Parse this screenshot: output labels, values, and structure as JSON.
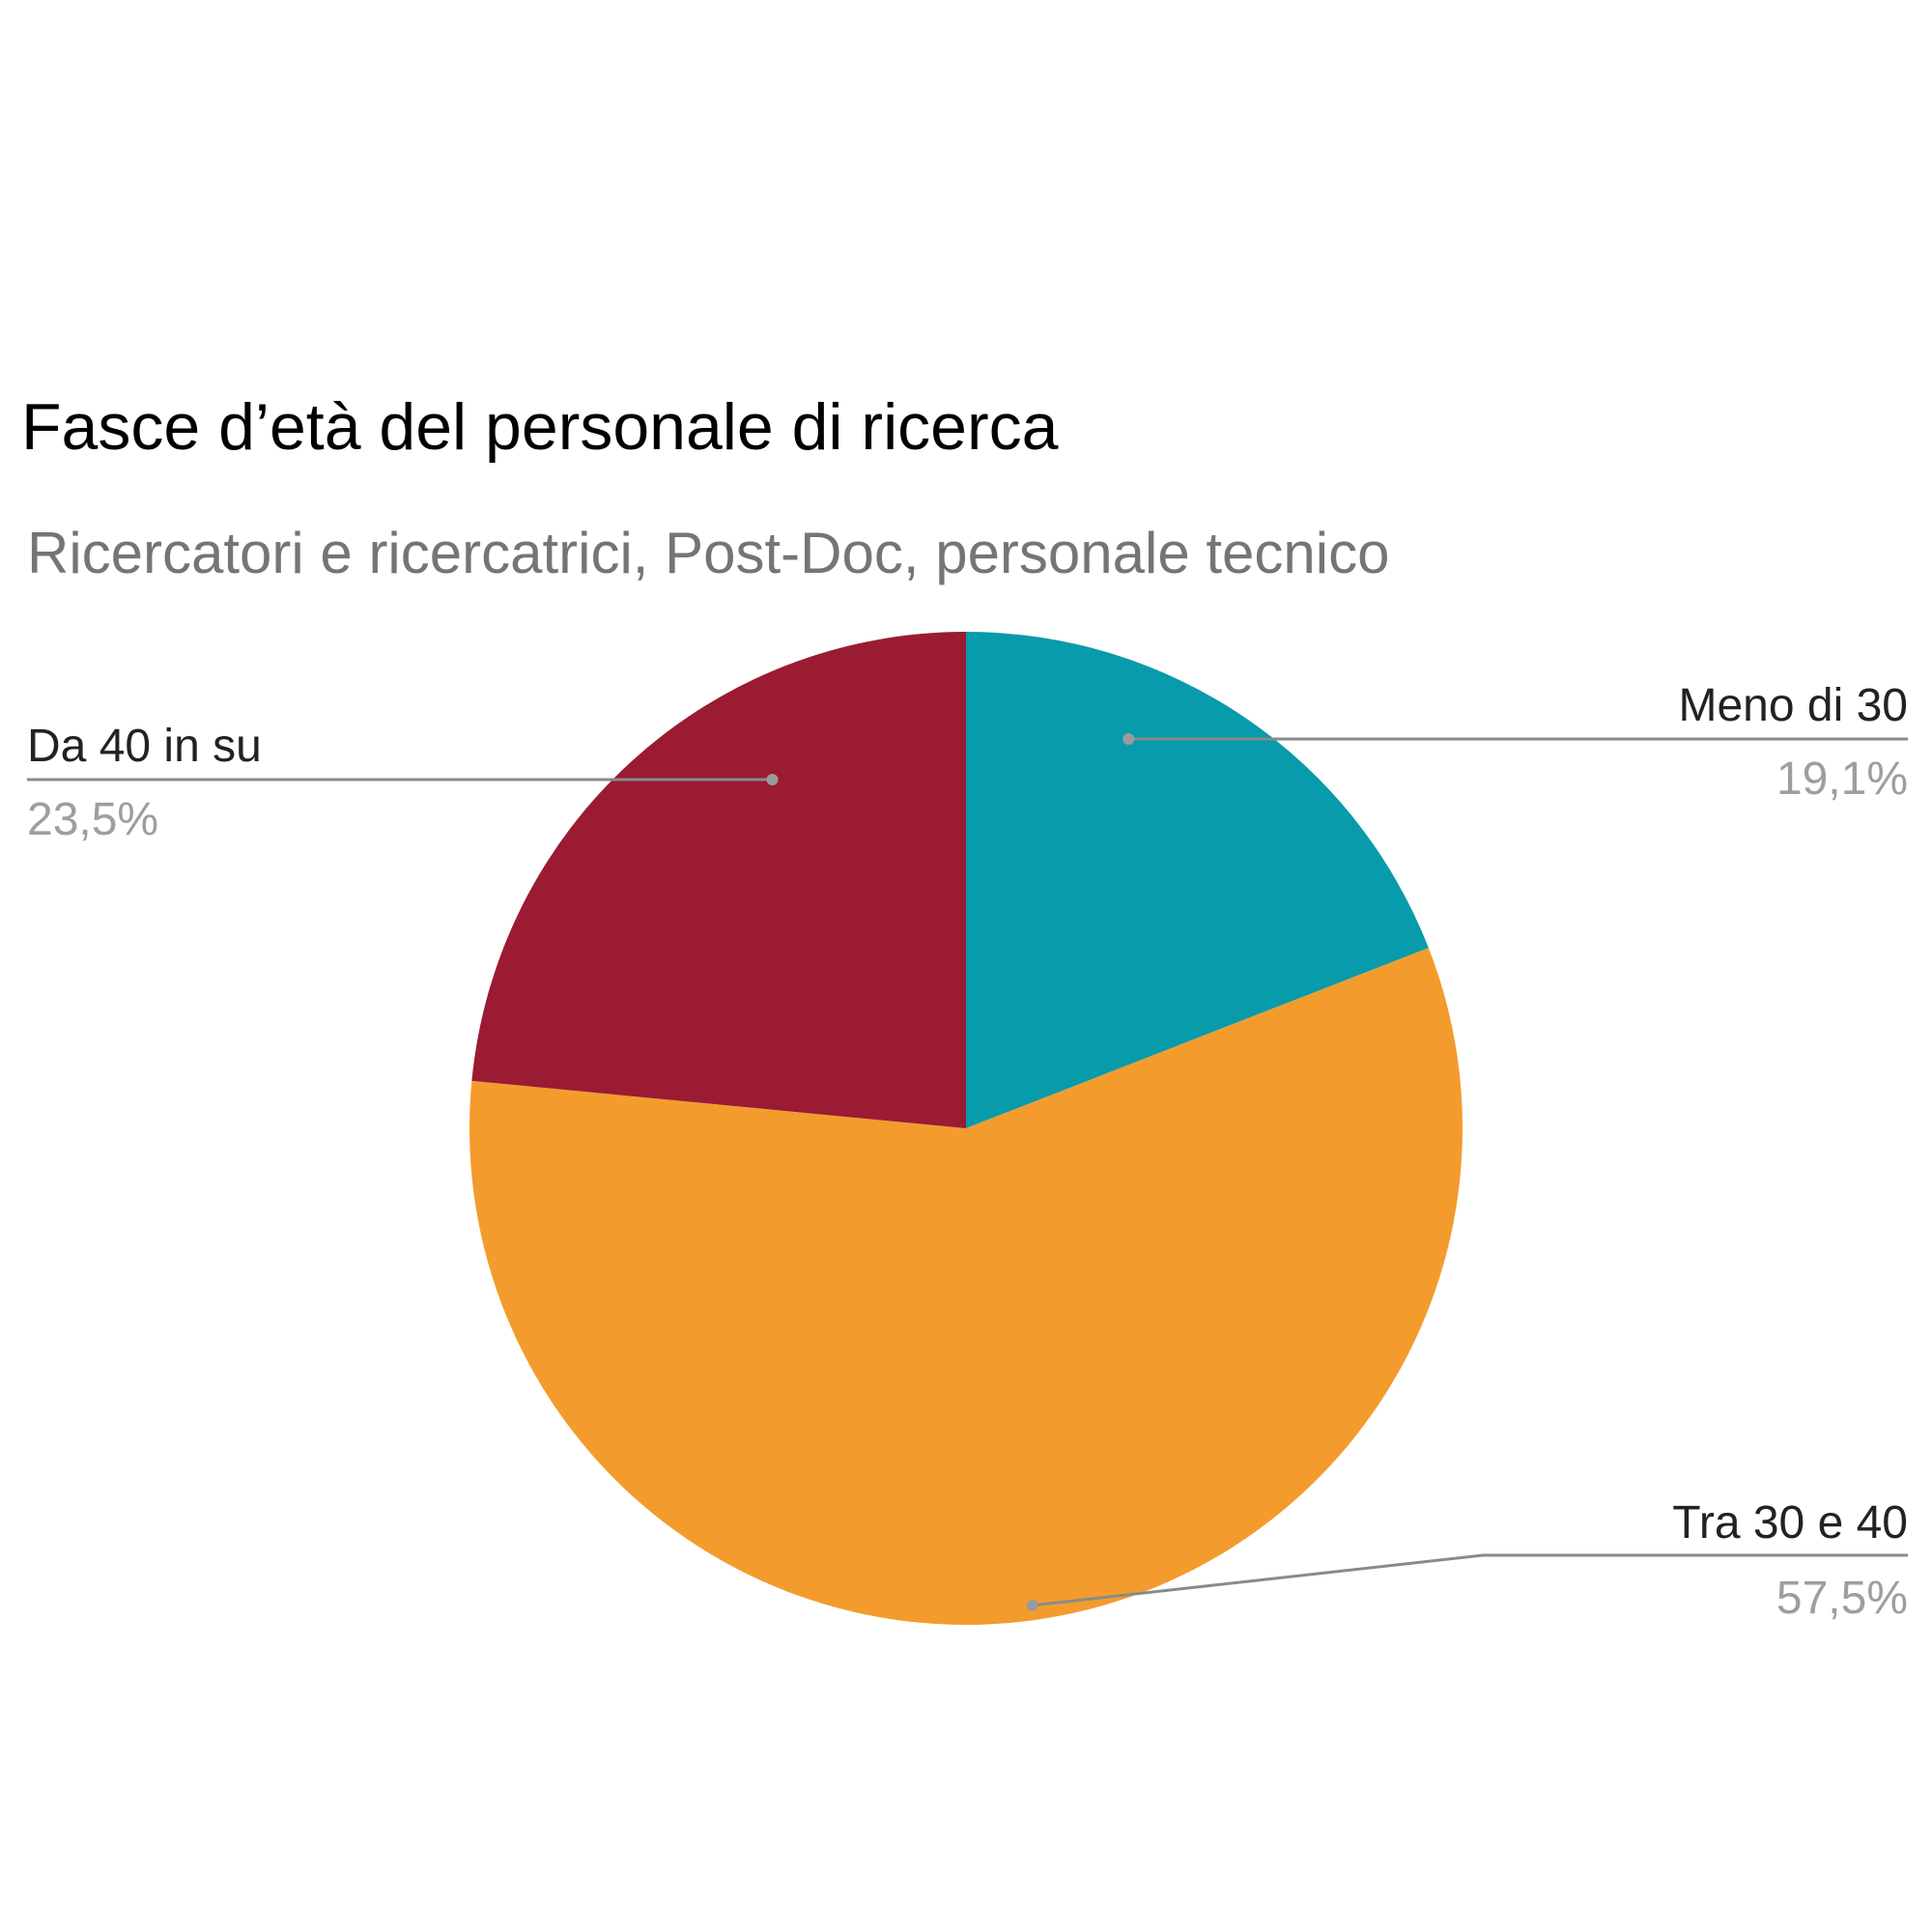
{
  "chart_data": {
    "type": "pie",
    "title": "Fasce d’età del personale di ricerca",
    "subtitle": "Ricercatori e ricercatrici, Post-Doc, personale tecnico",
    "slices": [
      {
        "label": "Meno di 30",
        "value": 19.1,
        "display": "19,1%",
        "color": "#079bab"
      },
      {
        "label": "Tra 30 e 40",
        "value": 57.5,
        "display": "57,5%",
        "color": "#f39c2d"
      },
      {
        "label": "Da 40 in su",
        "value": 23.5,
        "display": "23,5%",
        "color": "#9a1b32"
      }
    ],
    "start_angle": "12 o'clock",
    "direction": "clockwise",
    "legend": "none",
    "labels": "outside with leader lines"
  }
}
